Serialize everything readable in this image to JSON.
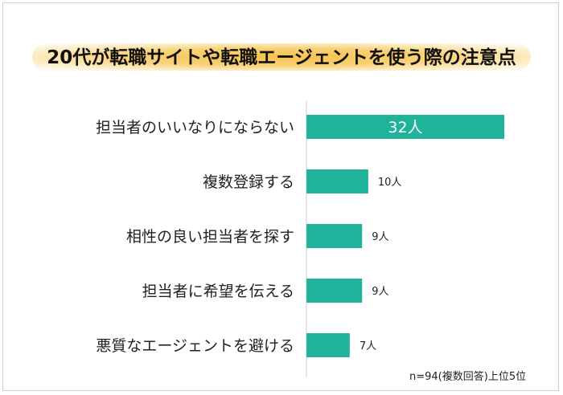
{
  "title": "20代が転職サイトや転職エージェントを使う際の注意点",
  "note": "n=94(複数回答)上位5位",
  "colors": {
    "bar": "#1fb39a",
    "axis": "#cccccc",
    "label": "#222222",
    "value_inside": "#ffffff",
    "value_outside": "#222222"
  },
  "chart_data": {
    "type": "bar",
    "orientation": "horizontal",
    "categories": [
      "担当者のいいなりにならない",
      "複数登録する",
      "相性の良い担当者を探す",
      "担当者に希望を伝える",
      "悪質なエージェントを避ける"
    ],
    "values": [
      32,
      10,
      9,
      9,
      7
    ],
    "value_labels": [
      "32人",
      "10人",
      "9人",
      "9人",
      "7人"
    ],
    "title": "20代が転職サイトや転職エージェントを使う際の注意点",
    "xlabel": "",
    "ylabel": "",
    "xlim": [
      0,
      32
    ],
    "grid": false,
    "legend": "none"
  }
}
